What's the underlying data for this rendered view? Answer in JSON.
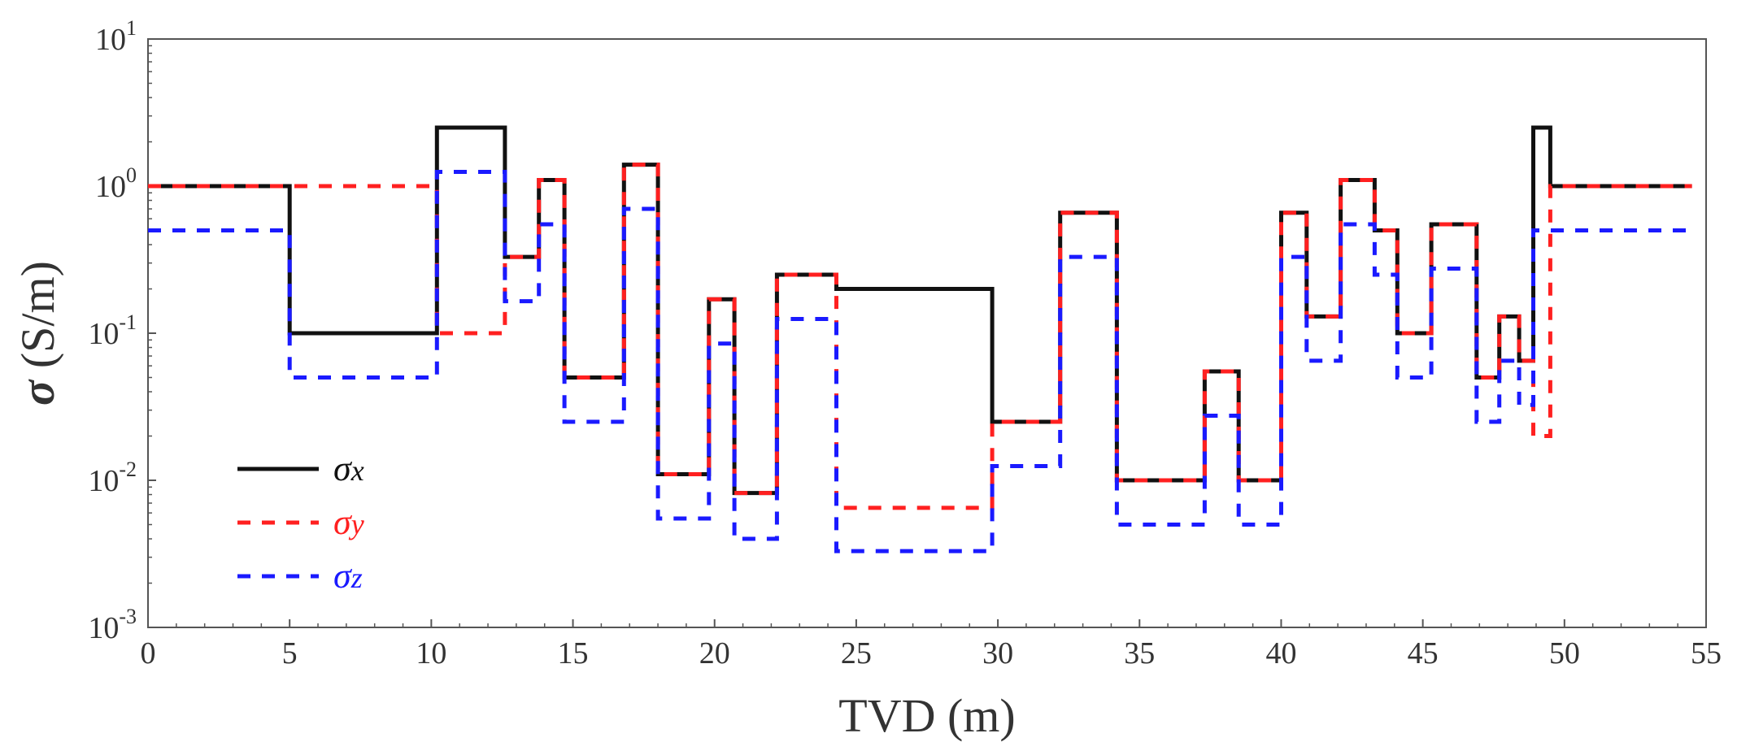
{
  "chart_data": {
    "type": "line",
    "step": true,
    "xlabel": "TVD (m)",
    "ylabel_symbol": "σ",
    "ylabel_unit": " (S/m)",
    "xlim": [
      0,
      55
    ],
    "ylim": [
      0.001,
      10
    ],
    "yscale": "log",
    "grid": false,
    "legend_position": "lower-left",
    "x_ticks": [
      0,
      5,
      10,
      15,
      20,
      25,
      30,
      35,
      40,
      45,
      50,
      55
    ],
    "x_tick_labels": [
      "0",
      "5",
      "10",
      "15",
      "20",
      "25",
      "30",
      "35",
      "40",
      "45",
      "50",
      "55"
    ],
    "y_ticks": [
      {
        "value": 10,
        "base": "10",
        "exp": "1"
      },
      {
        "value": 1,
        "base": "10",
        "exp": "0"
      },
      {
        "value": 0.1,
        "base": "10",
        "exp": "-1"
      },
      {
        "value": 0.01,
        "base": "10",
        "exp": "-2"
      },
      {
        "value": 0.001,
        "base": "10",
        "exp": "-3"
      }
    ],
    "series": [
      {
        "name": "σx",
        "symbol": "σ",
        "subscript": "x",
        "color": "#111111",
        "dash": "solid",
        "x": [
          0,
          5,
          10.2,
          12.6,
          13.8,
          14.7,
          16.8,
          18,
          19.8,
          20.7,
          22.2,
          24.3,
          29.8,
          32.2,
          34.2,
          37.3,
          38.5,
          40,
          40.9,
          42.1,
          43.3,
          44.1,
          45.3,
          46.9,
          47.7,
          48.4,
          48.9,
          49.5,
          54.5
        ],
        "y": [
          1,
          0.1,
          2.5,
          0.33,
          1.1,
          0.05,
          1.4,
          0.011,
          0.17,
          0.0082,
          0.25,
          0.2,
          0.025,
          0.66,
          0.01,
          0.055,
          0.01,
          0.66,
          0.13,
          1.1,
          0.5,
          0.1,
          0.55,
          0.05,
          0.13,
          0.065,
          2.5,
          1,
          1
        ]
      },
      {
        "name": "σy",
        "symbol": "σ",
        "subscript": "y",
        "color": "#ff2020",
        "dash": "dashed",
        "x": [
          0,
          10.2,
          12.6,
          13.8,
          14.7,
          16.8,
          18,
          19.8,
          20.7,
          22.2,
          24.3,
          29.8,
          32.2,
          34.2,
          37.3,
          38.5,
          40,
          40.9,
          42.1,
          43.3,
          44.1,
          45.3,
          46.9,
          47.7,
          48.4,
          48.9,
          49.5,
          54.5
        ],
        "y": [
          1,
          0.1,
          0.33,
          1.1,
          0.05,
          1.4,
          0.011,
          0.17,
          0.0082,
          0.25,
          0.0065,
          0.025,
          0.66,
          0.01,
          0.055,
          0.01,
          0.66,
          0.13,
          1.1,
          0.5,
          0.1,
          0.55,
          0.05,
          0.13,
          0.065,
          0.02,
          1,
          1
        ]
      },
      {
        "name": "σz",
        "symbol": "σ",
        "subscript": "z",
        "color": "#1a1aff",
        "dash": "dashed",
        "x": [
          0,
          5,
          10.2,
          12.6,
          13.8,
          14.7,
          16.8,
          18,
          19.8,
          20.7,
          22.2,
          24.3,
          29.8,
          32.2,
          34.2,
          37.3,
          38.5,
          40,
          40.9,
          42.1,
          43.3,
          44.1,
          45.3,
          46.9,
          47.7,
          48.4,
          48.9,
          54.5
        ],
        "y": [
          0.5,
          0.05,
          1.25,
          0.165,
          0.55,
          0.025,
          0.7,
          0.0055,
          0.085,
          0.004,
          0.125,
          0.0033,
          0.0125,
          0.33,
          0.005,
          0.0275,
          0.005,
          0.33,
          0.065,
          0.55,
          0.25,
          0.05,
          0.275,
          0.025,
          0.065,
          0.0325,
          0.5,
          0.5
        ]
      }
    ]
  }
}
